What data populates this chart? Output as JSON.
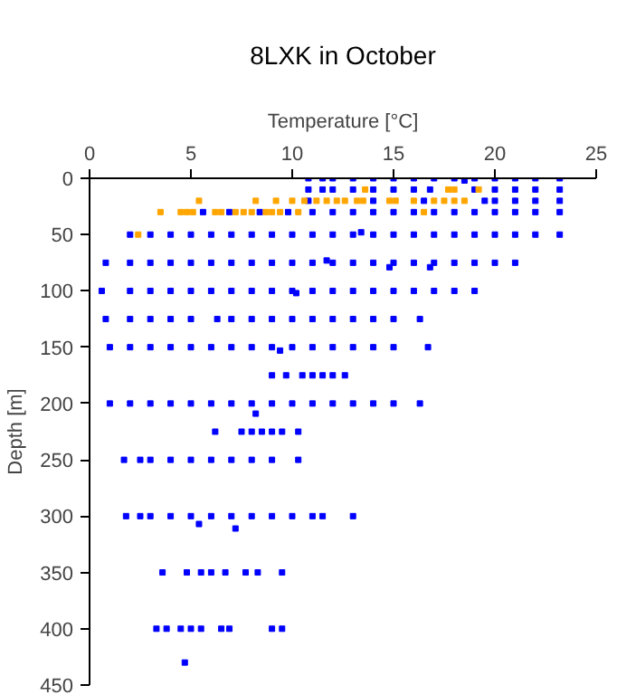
{
  "chart_data": {
    "type": "scatter",
    "title": "8LXK in October",
    "xlabel": "Temperature [°C]",
    "ylabel": "Depth [m]",
    "xlim": [
      0,
      25
    ],
    "xticks": [
      0,
      5,
      10,
      15,
      20,
      25
    ],
    "ylim": [
      450,
      0
    ],
    "yticks": [
      0,
      50,
      100,
      150,
      200,
      250,
      300,
      350,
      400,
      450
    ],
    "marker": "square",
    "series": [
      {
        "color": "#0000ff",
        "x": [
          10.8,
          11.5,
          12,
          13,
          14,
          15,
          16,
          17,
          18,
          18.5,
          19,
          20,
          21,
          22,
          23.2
        ],
        "values": [
          0,
          0,
          0,
          0,
          0,
          0,
          0,
          0,
          0,
          2,
          0,
          0,
          0,
          0,
          0
        ]
      },
      {
        "color": "#0000ff",
        "x": [
          10.8,
          11.5,
          12,
          13,
          14,
          15,
          16,
          16.8,
          19,
          20,
          21,
          22,
          23.2
        ],
        "values": [
          10,
          10,
          10,
          10,
          10,
          10,
          10,
          10,
          10,
          10,
          10,
          10,
          10
        ]
      },
      {
        "color": "#0000ff",
        "x": [
          10.8,
          14,
          16.5,
          19.5,
          20,
          21,
          22,
          23.2
        ],
        "values": [
          20,
          20,
          20,
          20,
          20,
          20,
          20,
          20
        ]
      },
      {
        "color": "#0000ff",
        "x": [
          5.6,
          6.9,
          8.4,
          9.8,
          11,
          12,
          13,
          14,
          15,
          16,
          17,
          18,
          19,
          20,
          21,
          22,
          23.2
        ],
        "values": [
          30,
          30,
          30,
          30,
          30,
          30,
          30,
          30,
          30,
          30,
          30,
          30,
          30,
          30,
          30,
          30,
          30
        ]
      },
      {
        "color": "#0000ff",
        "x": [
          2,
          3,
          4,
          5,
          6,
          7,
          8,
          9,
          10,
          11,
          12,
          13,
          13.4,
          14,
          15,
          16,
          17,
          18,
          19,
          20,
          21,
          22,
          23.2
        ],
        "values": [
          50,
          50,
          50,
          50,
          50,
          50,
          50,
          50,
          50,
          50,
          50,
          50,
          48,
          50,
          50,
          50,
          50,
          50,
          50,
          50,
          50,
          50,
          50
        ]
      },
      {
        "color": "#0000ff",
        "x": [
          0.8,
          2,
          3,
          4,
          5,
          6,
          7,
          8,
          9,
          10,
          11,
          11.7,
          12,
          13,
          14,
          14.8,
          15,
          16,
          16.8,
          17,
          18,
          19,
          20,
          21
        ],
        "values": [
          75,
          75,
          75,
          75,
          75,
          75,
          75,
          75,
          75,
          75,
          75,
          73,
          75,
          75,
          75,
          79,
          75,
          75,
          79,
          75,
          75,
          75,
          75,
          75
        ]
      },
      {
        "color": "#0000ff",
        "x": [
          0.6,
          2,
          3,
          4,
          5,
          6,
          7,
          8,
          9,
          10,
          10.2,
          11,
          12,
          13,
          14,
          15,
          16,
          17,
          18,
          19
        ],
        "values": [
          100,
          100,
          100,
          100,
          100,
          100,
          100,
          100,
          100,
          100,
          102,
          100,
          100,
          100,
          100,
          100,
          100,
          100,
          100,
          100
        ]
      },
      {
        "color": "#0000ff",
        "x": [
          0.8,
          2,
          3,
          4,
          5,
          6.3,
          7,
          8,
          9,
          10,
          11,
          12,
          13,
          14,
          15,
          16.3
        ],
        "values": [
          125,
          125,
          125,
          125,
          125,
          125,
          125,
          125,
          125,
          125,
          125,
          125,
          125,
          125,
          125,
          125
        ]
      },
      {
        "color": "#0000ff",
        "x": [
          1,
          2,
          3,
          4,
          5,
          6,
          7,
          8,
          9,
          9.4,
          10,
          11,
          12,
          13,
          14,
          15,
          16.7
        ],
        "values": [
          150,
          150,
          150,
          150,
          150,
          150,
          150,
          150,
          150,
          153,
          150,
          150,
          150,
          150,
          150,
          150,
          150
        ]
      },
      {
        "color": "#0000ff",
        "x": [
          9,
          9.7,
          10.5,
          11,
          11.5,
          12,
          12.6
        ],
        "values": [
          175,
          175,
          175,
          175,
          175,
          175,
          175
        ]
      },
      {
        "color": "#0000ff",
        "x": [
          1,
          2,
          3,
          4,
          5,
          6,
          7,
          8,
          8.2,
          9,
          10,
          11,
          12,
          13,
          14,
          15,
          16.3
        ],
        "values": [
          200,
          200,
          200,
          200,
          200,
          200,
          200,
          200,
          209,
          200,
          200,
          200,
          200,
          200,
          200,
          200,
          200
        ]
      },
      {
        "color": "#0000ff",
        "x": [
          6.2,
          7.5,
          8,
          8.5,
          9,
          9.5,
          10.3
        ],
        "values": [
          225,
          225,
          225,
          225,
          225,
          225,
          225
        ]
      },
      {
        "color": "#0000ff",
        "x": [
          1.7,
          2.5,
          3,
          4,
          5,
          6,
          7,
          8,
          9,
          10.3
        ],
        "values": [
          250,
          250,
          250,
          250,
          250,
          250,
          250,
          250,
          250,
          250
        ]
      },
      {
        "color": "#0000ff",
        "x": [
          1.8,
          2.5,
          3,
          4,
          5,
          5.4,
          6,
          7,
          7.2,
          8,
          9,
          10,
          11,
          11.5,
          13
        ],
        "values": [
          300,
          300,
          300,
          300,
          300,
          307,
          300,
          300,
          311,
          300,
          300,
          300,
          300,
          300,
          300
        ]
      },
      {
        "color": "#0000ff",
        "x": [
          3.6,
          4.8,
          5.5,
          6,
          6.7,
          7.7,
          8.3,
          9.5
        ],
        "values": [
          350,
          350,
          350,
          350,
          350,
          350,
          350,
          350
        ]
      },
      {
        "color": "#0000ff",
        "x": [
          3.3,
          3.8,
          4.5,
          5,
          5.5,
          6.5,
          6.9,
          9,
          9.5,
          4.7
        ],
        "values": [
          400,
          400,
          400,
          400,
          400,
          400,
          400,
          400,
          400,
          430
        ]
      },
      {
        "color": "#ffa500",
        "x": [
          13.6,
          17.7,
          18,
          19.2,
          5.4,
          8.2,
          9.2,
          10,
          10.6,
          11.2,
          11.7,
          12.2,
          12.6,
          13.2,
          13.5,
          14.8,
          15.1,
          16,
          17,
          17.5,
          18,
          18.5,
          3.5,
          4.5,
          4.8,
          5.1,
          6.2,
          6.5,
          7.2,
          7.6,
          8,
          8.7,
          9,
          9.4,
          10.3,
          16.5,
          2.4
        ],
        "values": [
          10,
          10,
          10,
          10,
          20,
          20,
          20,
          20,
          20,
          20,
          20,
          20,
          20,
          20,
          20,
          20,
          20,
          20,
          20,
          20,
          20,
          20,
          30,
          30,
          30,
          30,
          30,
          30,
          30,
          30,
          30,
          30,
          30,
          30,
          30,
          30,
          50
        ]
      }
    ]
  }
}
